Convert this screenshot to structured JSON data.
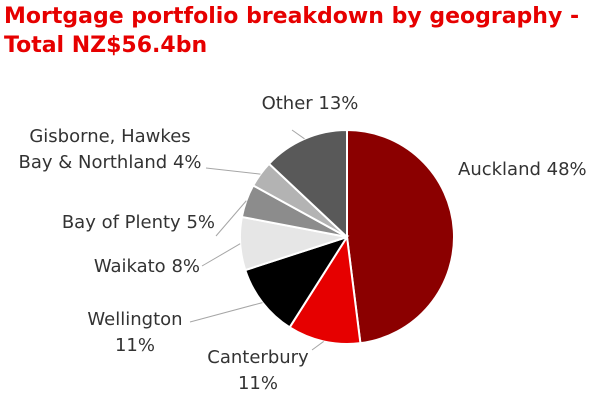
{
  "chart_data": {
    "type": "pie",
    "title": "Mortgage portfolio breakdown by geography - Total NZ$56.4bn",
    "categories": [
      "Auckland",
      "Canterbury",
      "Wellington",
      "Waikato",
      "Bay of Plenty",
      "Gisborne, Hawkes Bay & Northland",
      "Other"
    ],
    "values": [
      48,
      11,
      11,
      8,
      5,
      4,
      13
    ],
    "value_labels": [
      "48%",
      "11%",
      "11%",
      "8%",
      "5%",
      "4%",
      "13%"
    ],
    "colors": [
      "#8b0000",
      "#e60000",
      "#000000",
      "#e6e6e6",
      "#8c8c8c",
      "#b3b3b3",
      "#595959"
    ]
  }
}
